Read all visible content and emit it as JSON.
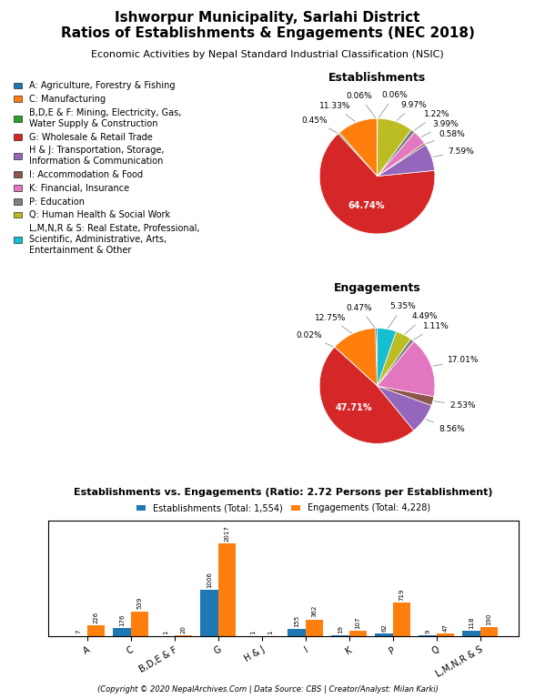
{
  "title": "Ishworpur Municipality, Sarlahi District\nRatios of Establishments & Engagements (NEC 2018)",
  "subtitle": "Economic Activities by Nepal Standard Industrial Classification (NSIC)",
  "annotations": [
    "(Copyright © 2020 NepalArchives.Com | Data Source: CBS | Creator/Analyst: Milan Karki)"
  ],
  "chart_data": [
    {
      "type": "pie",
      "title": "Establishments",
      "categories": [
        "A: Agriculture, Forestry & Fishing",
        "C: Manufacturing",
        "B,D,E & F: Mining, Electricity, Gas,\nWater Supply & Construction",
        "G: Wholesale & Retail Trade",
        "H & J: Transportation, Storage,\nInformation & Communication",
        "I: Accommodation & Food",
        "K: Financial, Insurance",
        "P: Education",
        "Q: Human Health & Social Work",
        "L,M,N,R & S: Real Estate, Professional,\nScientific, Administrative, Arts,\nEntertainment & Other"
      ],
      "values": [
        0.06,
        11.33,
        0.45,
        64.74,
        7.59,
        0.58,
        3.99,
        1.22,
        9.97,
        0.06
      ],
      "value_labels": [
        "0.06%",
        "11.33%",
        "0.45%",
        "64.74%",
        "7.59%",
        "0.58%",
        "3.99%",
        "1.22%",
        "9.97%",
        "0.06%"
      ],
      "data_labels": true,
      "legend": "upper left"
    },
    {
      "type": "pie",
      "title": "Engagements",
      "categories": [
        "A: Agriculture, Forestry & Fishing",
        "C: Manufacturing",
        "B,D,E & F: Mining, Electricity, Gas,\nWater Supply & Construction",
        "G: Wholesale & Retail Trade",
        "H & J: Transportation, Storage,\nInformation & Communication",
        "I: Accommodation & Food",
        "K: Financial, Insurance",
        "P: Education",
        "Q: Human Health & Social Work",
        "L,M,N,R & S: Real Estate, Professional,\nScientific, Administrative, Arts,\nEntertainment & Other"
      ],
      "values": [
        0.47,
        12.75,
        0.02,
        47.71,
        8.56,
        2.53,
        17.01,
        1.11,
        4.49,
        5.35
      ],
      "value_labels": [
        "0.47%",
        "12.75%",
        "0.02%",
        "47.71%",
        "8.56%",
        "2.53%",
        "17.01%",
        "1.11%",
        "4.49%",
        "5.35%"
      ],
      "data_labels": true
    },
    {
      "type": "bar",
      "title": "Establishments vs. Engagements (Ratio: 2.72 Persons per Establishment)",
      "categories": [
        "A",
        "C",
        "B,D,E & F",
        "G",
        "H & J",
        "I",
        "K",
        "P",
        "Q",
        "L,M,N,R & S"
      ],
      "series": [
        {
          "name": "Establishments (Total: 1,554)",
          "values": [
            7,
            176,
            1,
            1006,
            1,
            155,
            19,
            62,
            9,
            118
          ]
        },
        {
          "name": "Engagements (Total: 4,228)",
          "values": [
            226,
            539,
            20,
            2017,
            1,
            362,
            107,
            719,
            47,
            190
          ]
        }
      ],
      "ylim": [
        0,
        2500
      ],
      "data_labels": true,
      "tick_labels": "x",
      "legend": "lower center"
    }
  ]
}
